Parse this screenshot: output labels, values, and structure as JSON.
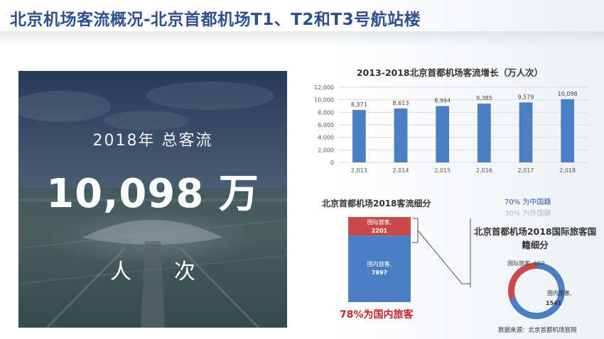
{
  "page": {
    "title": "北京机场客流概况-北京首都机场T1、T2和T3号航站楼",
    "source": "数据来源：北京首都机场官网"
  },
  "hero": {
    "year_label": "2018年  总客流",
    "number": "10,098 万",
    "unit": "人次"
  },
  "colors": {
    "bar": "#4a7fc4",
    "domestic": "#4a7fc4",
    "international": "#c84a4a",
    "highlight": "#c0272d"
  },
  "chart_data": [
    {
      "type": "bar",
      "title": "2013-2018北京首都机场客流增长（万人次）",
      "categories": [
        "2,013",
        "2,014",
        "2,015",
        "2,016",
        "2,017",
        "2,018"
      ],
      "values": [
        8371,
        8613,
        8994,
        9385,
        9579,
        10098
      ],
      "value_labels": [
        "8,371",
        "8,613",
        "8,994",
        "9,385",
        "9,579",
        "10,098"
      ],
      "ylim": [
        0,
        12000
      ],
      "yticks": [
        "0",
        "2,000",
        "4,000",
        "6,000",
        "8,000",
        "10,000",
        "12,000"
      ],
      "grid": true
    },
    {
      "type": "bar",
      "title": "北京首都机场2018客流细分",
      "stacked": true,
      "series": [
        {
          "name": "国内旅客,",
          "value": 7897,
          "label": "7897"
        },
        {
          "name": "国际旅客,",
          "value": 2201,
          "label": "2201"
        }
      ],
      "note": "78%为国内旅客"
    },
    {
      "type": "pie",
      "title": "北京首都机场2018国际旅客国籍细分",
      "donut": true,
      "legend": [
        "70% 为中国籍",
        "30% 为外国籍"
      ],
      "slices": [
        {
          "name": "国内旅客,",
          "value": 1541,
          "label": "1541"
        },
        {
          "name": "国际旅客,",
          "value": 660,
          "label": "660"
        }
      ]
    }
  ]
}
